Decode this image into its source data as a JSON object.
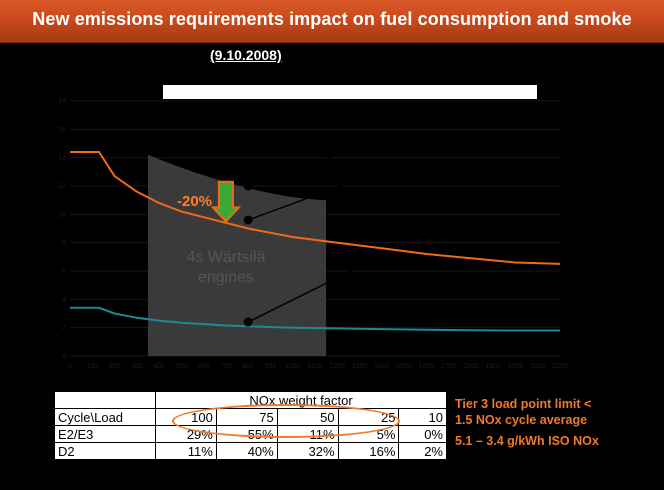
{
  "slide": {
    "title": "New emissions requirements impact on fuel consumption and smoke",
    "date": "(9.10.2008)"
  },
  "chart_overlay": {
    "reduction_label": "-20%",
    "shaded_region_label_line1": "4s Wärtsilä",
    "shaded_region_label_line2": "engines",
    "colors": {
      "orange_curve": "#ef6a1a",
      "teal_curve": "#1b8a96",
      "shade": "#3a3a3a",
      "arrow": "#3aaa35"
    }
  },
  "chart_data": {
    "type": "line",
    "title": "",
    "xlabel": "",
    "ylabel": "",
    "x_ticks": [
      "0",
      "100",
      "200",
      "300",
      "400",
      "500",
      "600",
      "700",
      "800",
      "900",
      "1000",
      "1100",
      "1200",
      "1300",
      "1400",
      "1500",
      "1600",
      "1700",
      "1800",
      "1900",
      "2000",
      "2100",
      "2200"
    ],
    "y_ticks": [
      "0",
      "2",
      "4",
      "6",
      "8",
      "10",
      "12",
      "14",
      "16",
      "18"
    ],
    "series": [
      {
        "x": [
          0,
          130,
          200,
          300,
          400,
          500,
          600,
          700,
          800,
          900,
          1000,
          1200,
          1400,
          1600,
          1800,
          2000,
          2200
        ],
        "y": [
          14.4,
          14.4,
          12.7,
          11.6,
          10.8,
          10.2,
          9.8,
          9.4,
          9.0,
          8.7,
          8.4,
          8.0,
          7.6,
          7.2,
          6.9,
          6.6,
          6.5
        ]
      },
      {
        "x": [
          0,
          130,
          200,
          300,
          400,
          500,
          600,
          700,
          800,
          1000,
          1200,
          1400,
          1600,
          1800,
          2000,
          2200
        ],
        "y": [
          3.4,
          3.4,
          3.0,
          2.7,
          2.5,
          2.35,
          2.25,
          2.15,
          2.1,
          2.0,
          1.95,
          1.9,
          1.85,
          1.82,
          1.8,
          1.8
        ]
      }
    ],
    "shaded_region": {
      "x": [
        350,
        1150
      ],
      "y_top_start": 14.2,
      "y_top_end": 11.0
    },
    "markers": [
      {
        "x": 800,
        "y": 12.0
      },
      {
        "x": 800,
        "y": 9.6
      },
      {
        "x": 800,
        "y": 2.4
      }
    ],
    "arrow": {
      "x": 700,
      "y_from": 12.3,
      "y_to": 9.5
    },
    "xlim": [
      0,
      2200
    ],
    "ylim": [
      0,
      18
    ]
  },
  "table": {
    "header": "NOx weight factor",
    "rows": [
      [
        "Cycle\\Load",
        "100",
        "75",
        "50",
        "25",
        "10"
      ],
      [
        "E2/E3",
        "29%",
        "55%",
        "11%",
        "5%",
        "0%"
      ],
      [
        "D2",
        "11%",
        "40%",
        "32%",
        "16%",
        "2%"
      ]
    ]
  },
  "notes": {
    "line1": "Tier 3 load point limit <",
    "line2": "1.5 NOx cycle average",
    "line3": "5.1 – 3.4 g/kWh ISO NOx"
  }
}
